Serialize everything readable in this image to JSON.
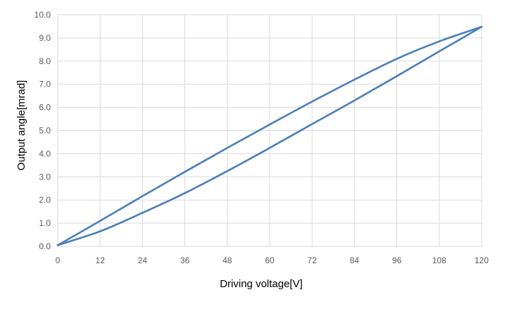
{
  "chart_data": {
    "type": "line",
    "xlabel": "Driving voltage[V]",
    "ylabel": "Output angle[mrad]",
    "xlim": [
      0,
      120
    ],
    "ylim": [
      0,
      10
    ],
    "xticks": [
      0,
      12,
      24,
      36,
      48,
      60,
      72,
      84,
      96,
      108,
      120
    ],
    "xtick_labels": [
      "0",
      "12",
      "24",
      "36",
      "48",
      "60",
      "72",
      "84",
      "96",
      "108",
      "120"
    ],
    "yticks": [
      0,
      1,
      2,
      3,
      4,
      5,
      6,
      7,
      8,
      9,
      10
    ],
    "ytick_labels": [
      "0.0",
      "1.0",
      "2.0",
      "3.0",
      "4.0",
      "5.0",
      "6.0",
      "7.0",
      "8.0",
      "9.0",
      "10.0"
    ],
    "grid": true,
    "legend": "none",
    "color": "#4a7ebb",
    "series": [
      {
        "x": [
          0,
          12,
          24,
          36,
          48,
          60,
          72,
          84,
          96,
          108,
          120
        ],
        "y": [
          0.05,
          1.1,
          2.17,
          3.22,
          4.25,
          5.26,
          6.25,
          7.2,
          8.1,
          8.85,
          9.48
        ]
      },
      {
        "x": [
          0,
          12,
          24,
          36,
          48,
          60,
          72,
          84,
          96,
          108,
          120
        ],
        "y": [
          0.05,
          0.65,
          1.45,
          2.3,
          3.25,
          4.25,
          5.28,
          6.3,
          7.35,
          8.42,
          9.48
        ]
      }
    ]
  }
}
